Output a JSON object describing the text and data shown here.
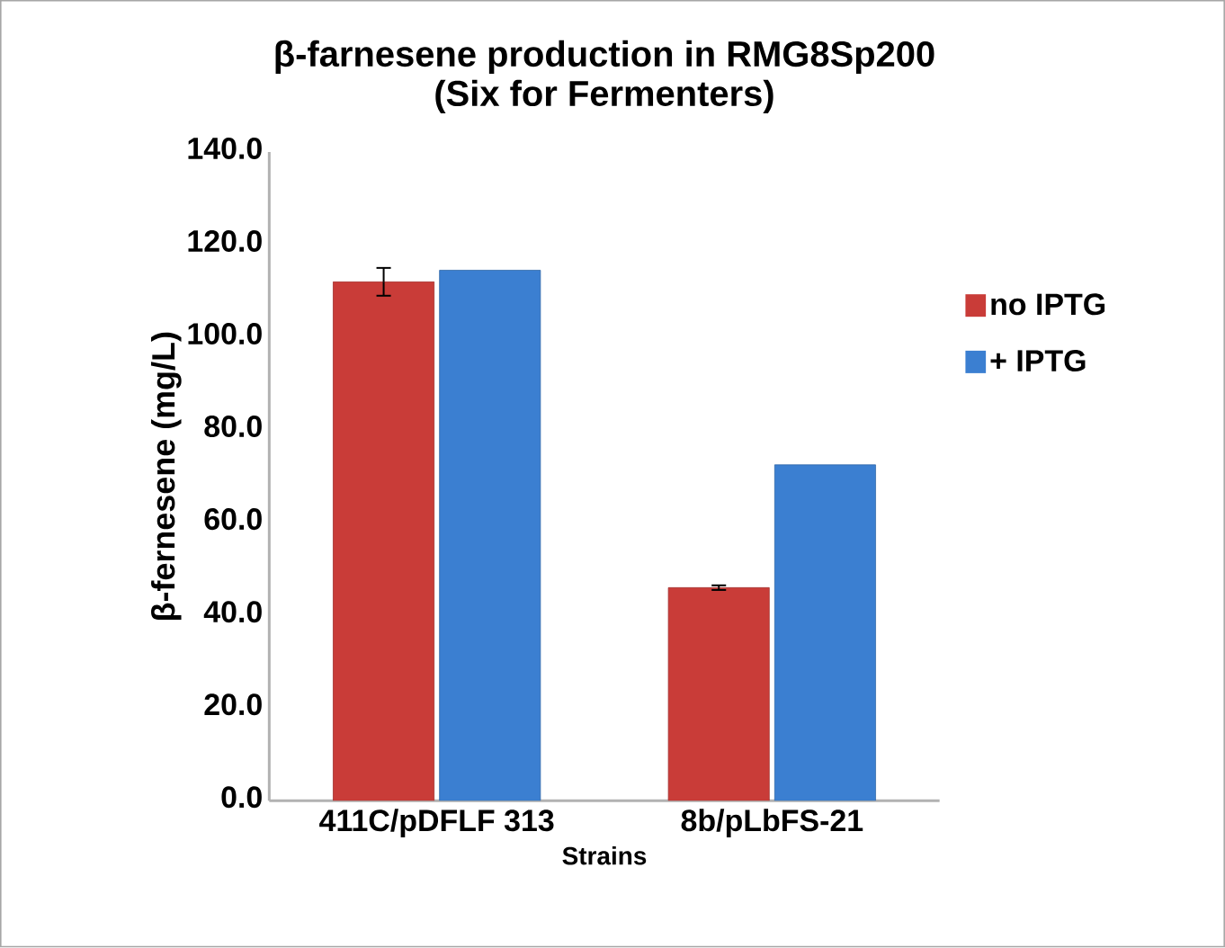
{
  "chart_data": {
    "type": "bar",
    "title": "β-farnesene production in RMG8Sp200 (Six for Fermenters)",
    "xlabel": "Strains",
    "ylabel": "β-fernesene (mg/L)",
    "categories": [
      "411C/pDFLF 313",
      "8b/pLbFS-21"
    ],
    "series": [
      {
        "name": "no IPTG",
        "color": "#c93c38",
        "values": [
          112,
          46
        ],
        "errors": [
          3,
          0.5
        ]
      },
      {
        "name": "+ IPTG",
        "color": "#3b7fd1",
        "values": [
          114.5,
          72.5
        ]
      }
    ],
    "ylim": [
      0,
      140
    ],
    "yticks": [
      {
        "value": 0,
        "label": "0.0"
      },
      {
        "value": 20,
        "label": "20.0"
      },
      {
        "value": 40,
        "label": "40.0"
      },
      {
        "value": 60,
        "label": "60.0"
      },
      {
        "value": 80,
        "label": "80.0"
      },
      {
        "value": 100,
        "label": "100.0"
      },
      {
        "value": 120,
        "label": "120.0"
      },
      {
        "value": 140,
        "label": "140.0"
      }
    ],
    "grid": false,
    "legend": "right"
  }
}
